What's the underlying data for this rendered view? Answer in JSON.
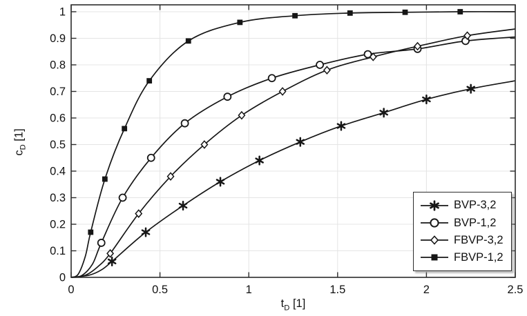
{
  "chart_data": {
    "type": "line",
    "title": "",
    "xlabel": {
      "main": "t",
      "sub": "D",
      "unit": "[1]"
    },
    "ylabel": {
      "main": "c",
      "sub": "D",
      "unit": "[1]"
    },
    "xlim": [
      0,
      2.5
    ],
    "ylim": [
      0,
      1.026
    ],
    "xtick_values": [
      0,
      0.5,
      1,
      1.5,
      2,
      2.5
    ],
    "xtick_labels": [
      "0",
      "0.5",
      "1",
      "1.5",
      "2",
      "2.5"
    ],
    "ytick_values": [
      0,
      0.1,
      0.2,
      0.3,
      0.4,
      0.5,
      0.6,
      0.7,
      0.8,
      0.9,
      1
    ],
    "ytick_labels": [
      "0",
      "0.1",
      "0.2",
      "0.3",
      "0.4",
      "0.5",
      "0.6",
      "0.7",
      "0.8",
      "0.9",
      "1"
    ],
    "grid": true,
    "legend_position": "bottom-right",
    "line_color": "#161616",
    "grid_color": "#e4e4e4",
    "frame_color": "#2b2b2b",
    "series": [
      {
        "name": "BVP-3,2",
        "marker": "star",
        "curve": [
          [
            0,
            0
          ],
          [
            0.1,
            0.008
          ],
          [
            0.17,
            0.028
          ],
          [
            0.23,
            0.06
          ],
          [
            0.42,
            0.17
          ],
          [
            0.63,
            0.27
          ],
          [
            0.84,
            0.36
          ],
          [
            1.06,
            0.44
          ],
          [
            1.29,
            0.51
          ],
          [
            1.52,
            0.57
          ],
          [
            1.76,
            0.62
          ],
          [
            2.0,
            0.67
          ],
          [
            2.25,
            0.71
          ],
          [
            2.5,
            0.74
          ]
        ],
        "markers": [
          [
            0.23,
            0.06
          ],
          [
            0.42,
            0.17
          ],
          [
            0.63,
            0.27
          ],
          [
            0.84,
            0.36
          ],
          [
            1.06,
            0.44
          ],
          [
            1.29,
            0.51
          ],
          [
            1.52,
            0.57
          ],
          [
            1.76,
            0.62
          ],
          [
            2.0,
            0.67
          ],
          [
            2.25,
            0.71
          ]
        ]
      },
      {
        "name": "BVP-1,2",
        "marker": "circle",
        "curve": [
          [
            0,
            0
          ],
          [
            0.06,
            0.007
          ],
          [
            0.12,
            0.05
          ],
          [
            0.17,
            0.13
          ],
          [
            0.29,
            0.3
          ],
          [
            0.45,
            0.45
          ],
          [
            0.64,
            0.58
          ],
          [
            0.88,
            0.68
          ],
          [
            1.13,
            0.75
          ],
          [
            1.4,
            0.8
          ],
          [
            1.67,
            0.84
          ],
          [
            1.95,
            0.86
          ],
          [
            2.22,
            0.89
          ],
          [
            2.5,
            0.905
          ]
        ],
        "markers": [
          [
            0.17,
            0.13
          ],
          [
            0.29,
            0.3
          ],
          [
            0.45,
            0.45
          ],
          [
            0.64,
            0.58
          ],
          [
            0.88,
            0.68
          ],
          [
            1.13,
            0.75
          ],
          [
            1.4,
            0.8
          ],
          [
            1.67,
            0.84
          ],
          [
            1.95,
            0.86
          ],
          [
            2.22,
            0.89
          ]
        ]
      },
      {
        "name": "FBVP-3,2",
        "marker": "diamond",
        "curve": [
          [
            0,
            0
          ],
          [
            0.08,
            0.008
          ],
          [
            0.15,
            0.04
          ],
          [
            0.22,
            0.09
          ],
          [
            0.38,
            0.24
          ],
          [
            0.56,
            0.38
          ],
          [
            0.75,
            0.5
          ],
          [
            0.96,
            0.61
          ],
          [
            1.19,
            0.7
          ],
          [
            1.44,
            0.78
          ],
          [
            1.7,
            0.83
          ],
          [
            1.95,
            0.87
          ],
          [
            2.23,
            0.91
          ],
          [
            2.5,
            0.935
          ]
        ],
        "markers": [
          [
            0.22,
            0.09
          ],
          [
            0.38,
            0.24
          ],
          [
            0.56,
            0.38
          ],
          [
            0.75,
            0.5
          ],
          [
            0.96,
            0.61
          ],
          [
            1.19,
            0.7
          ],
          [
            1.44,
            0.78
          ],
          [
            1.7,
            0.83
          ],
          [
            1.95,
            0.87
          ],
          [
            2.23,
            0.91
          ]
        ]
      },
      {
        "name": "FBVP-1,2",
        "marker": "square",
        "curve": [
          [
            0,
            0
          ],
          [
            0.04,
            0.012
          ],
          [
            0.08,
            0.08
          ],
          [
            0.11,
            0.17
          ],
          [
            0.19,
            0.37
          ],
          [
            0.3,
            0.56
          ],
          [
            0.44,
            0.74
          ],
          [
            0.66,
            0.89
          ],
          [
            0.95,
            0.96
          ],
          [
            1.26,
            0.985
          ],
          [
            1.57,
            0.995
          ],
          [
            1.88,
            0.998
          ],
          [
            2.19,
            1.0
          ],
          [
            2.5,
            1.0
          ]
        ],
        "markers": [
          [
            0.11,
            0.17
          ],
          [
            0.19,
            0.37
          ],
          [
            0.3,
            0.56
          ],
          [
            0.44,
            0.74
          ],
          [
            0.66,
            0.89
          ],
          [
            0.95,
            0.96
          ],
          [
            1.26,
            0.985
          ],
          [
            1.57,
            0.995
          ],
          [
            1.88,
            0.998
          ],
          [
            2.19,
            1.0
          ]
        ]
      }
    ]
  }
}
